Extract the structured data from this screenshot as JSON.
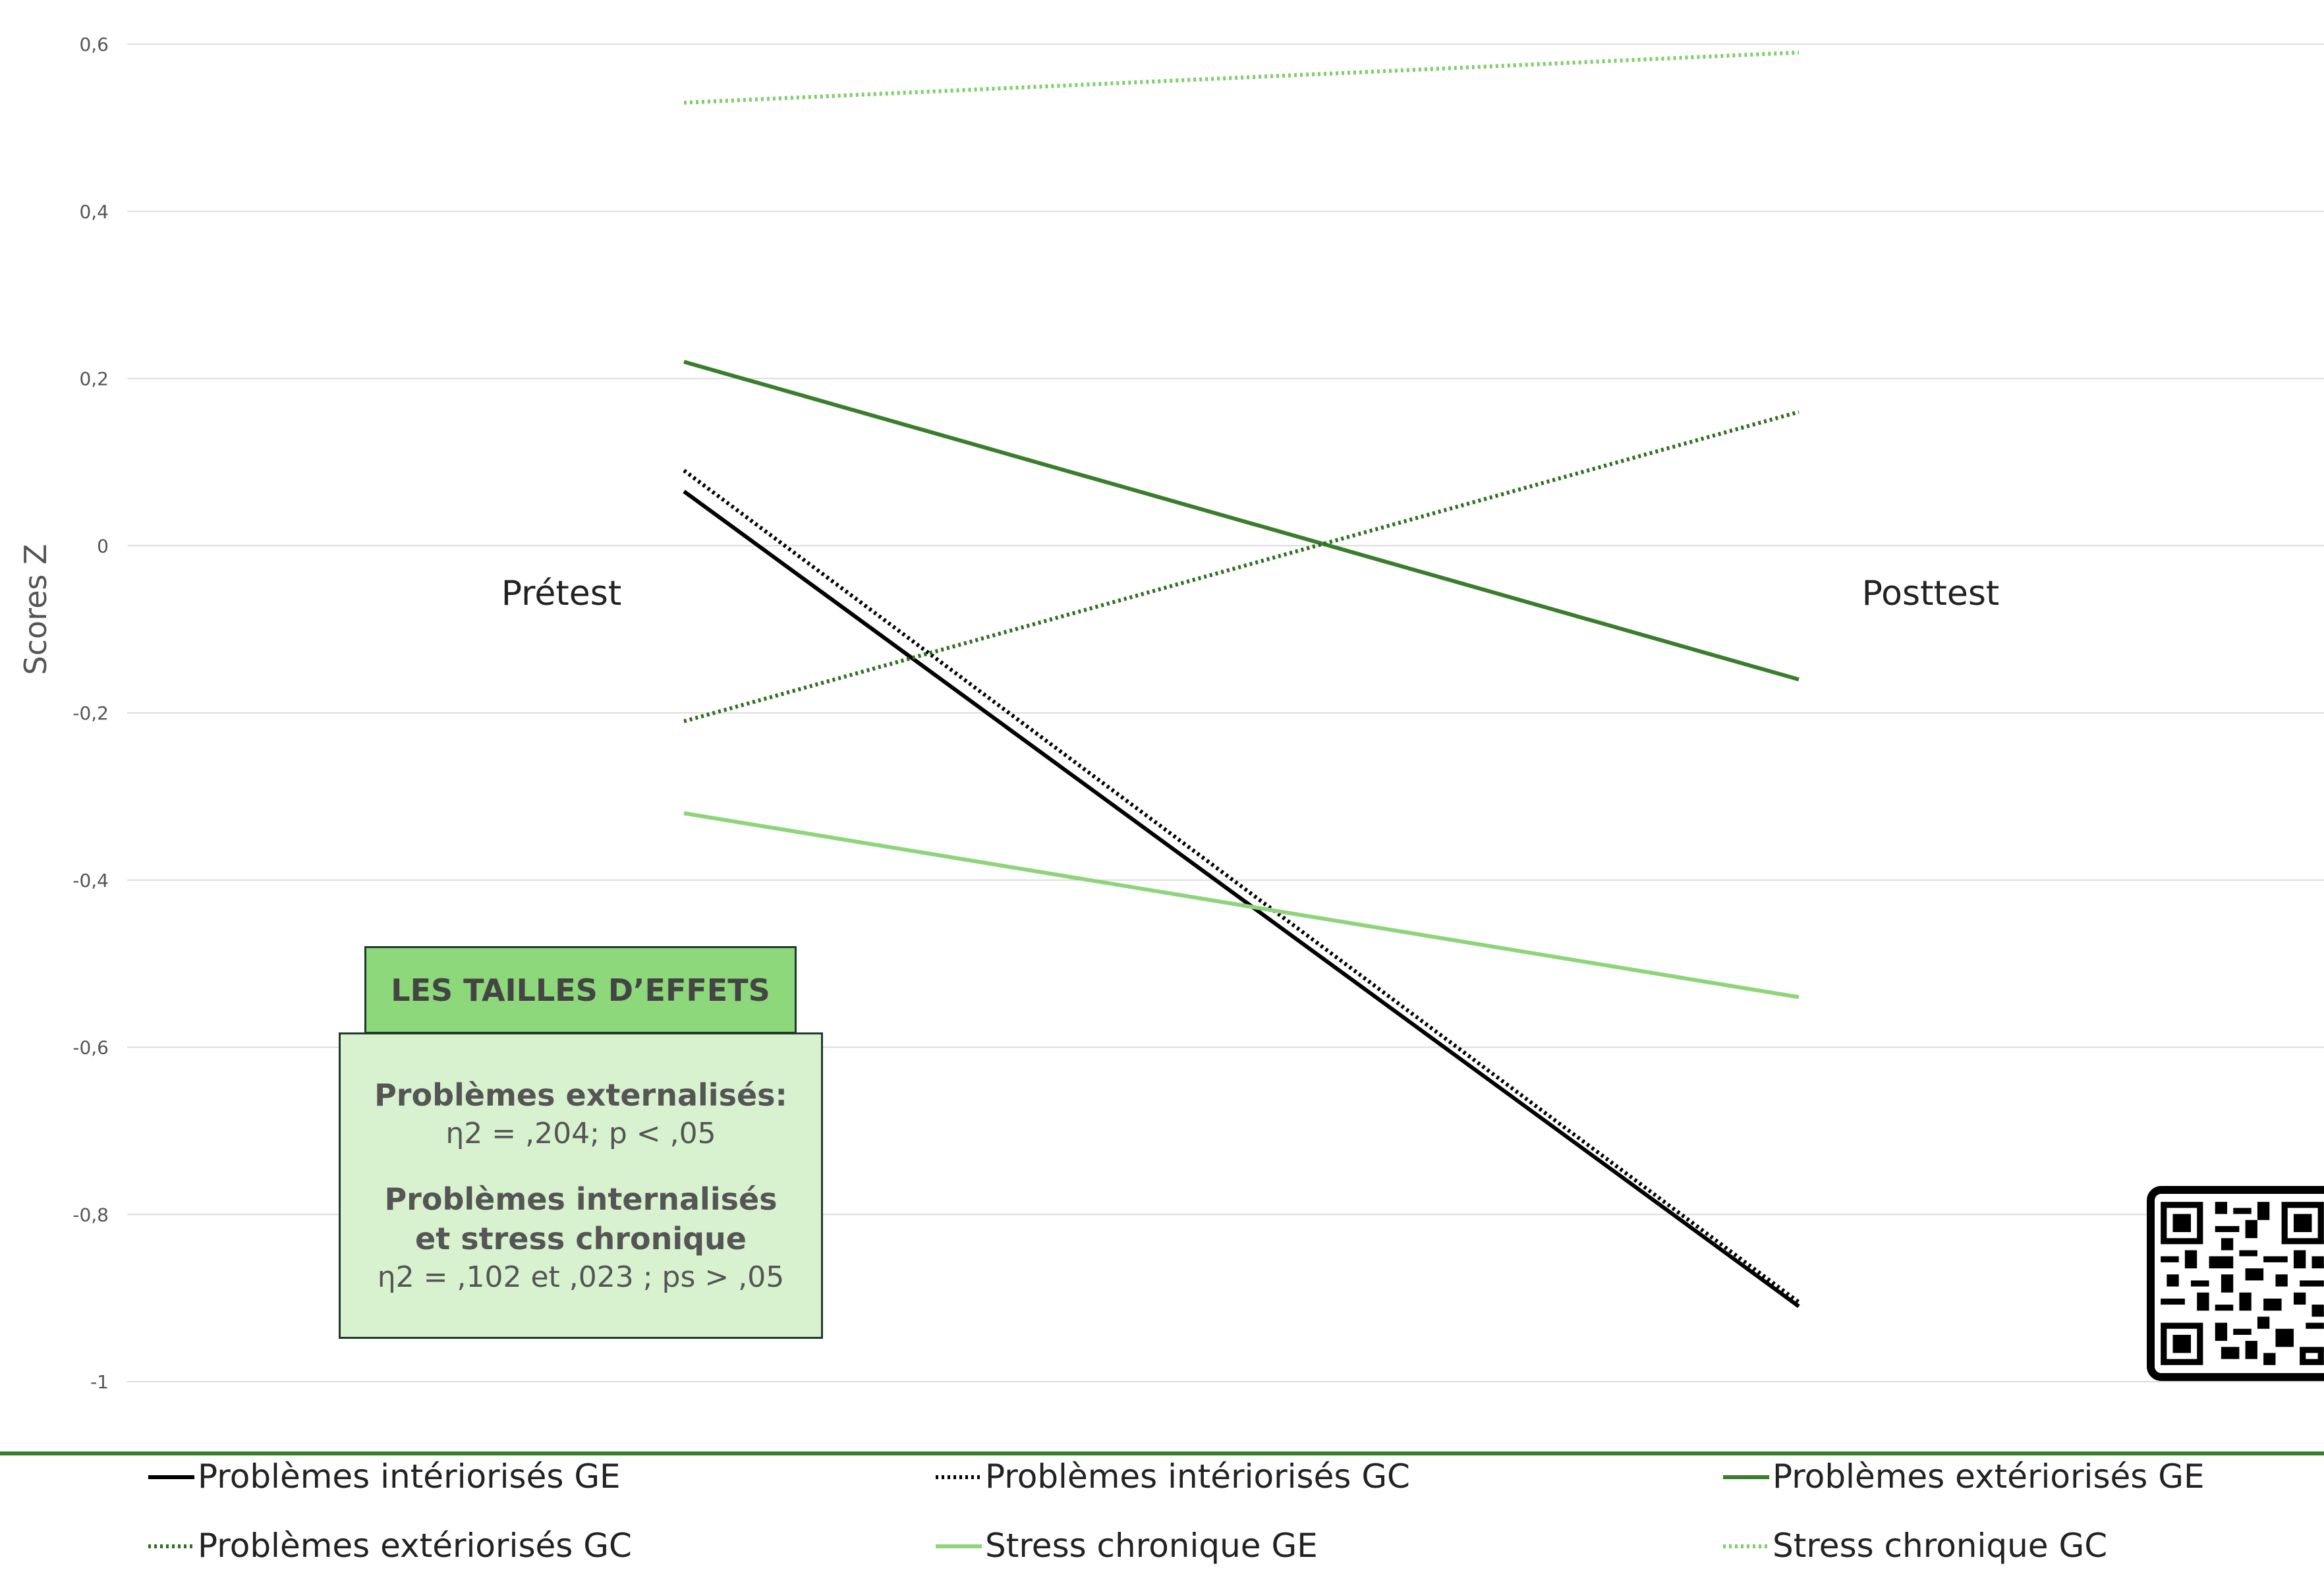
{
  "chart_data": {
    "type": "line",
    "x": [
      "Prétest",
      "Posttest"
    ],
    "ylabel": "Scores Z",
    "ylim": [
      -1,
      0.6
    ],
    "yticks": [
      "0,6",
      "0,4",
      "0,2",
      "0",
      "-0,2",
      "-0,4",
      "-0,6",
      "-0,8",
      "-1"
    ],
    "grid": true,
    "legend_position": "bottom",
    "series": [
      {
        "name": "Problèmes intériorisés GE",
        "values": [
          0.065,
          -0.91
        ],
        "color": "#000000",
        "style": "solid"
      },
      {
        "name": "Problèmes intériorisés GC",
        "values": [
          0.09,
          -0.905
        ],
        "color": "#000000",
        "style": "dotted"
      },
      {
        "name": "Problèmes extériorisés GE",
        "values": [
          0.22,
          -0.16
        ],
        "color": "#3a7d2c",
        "style": "solid"
      },
      {
        "name": "Problèmes extériorisés GC",
        "values": [
          -0.21,
          0.16
        ],
        "color": "#2f6f22",
        "style": "dotted"
      },
      {
        "name": "Stress chronique GE",
        "values": [
          -0.32,
          -0.54
        ],
        "color": "#8fd47b",
        "style": "solid"
      },
      {
        "name": "Stress chronique GC",
        "values": [
          0.53,
          0.59
        ],
        "color": "#7fcf6a",
        "style": "dotted"
      }
    ]
  },
  "effect_box": {
    "header": "LES TAILLES D’EFFETS",
    "title1": "Problèmes externalisés:",
    "stat1": "η2 = ,204; p < ,05",
    "title2": "Problèmes internalisés et stress chronique",
    "stat2": "η2 = ,102 et ,023 ; ps > ,05"
  },
  "qr_code": {
    "icon": "qr-code-icon"
  }
}
